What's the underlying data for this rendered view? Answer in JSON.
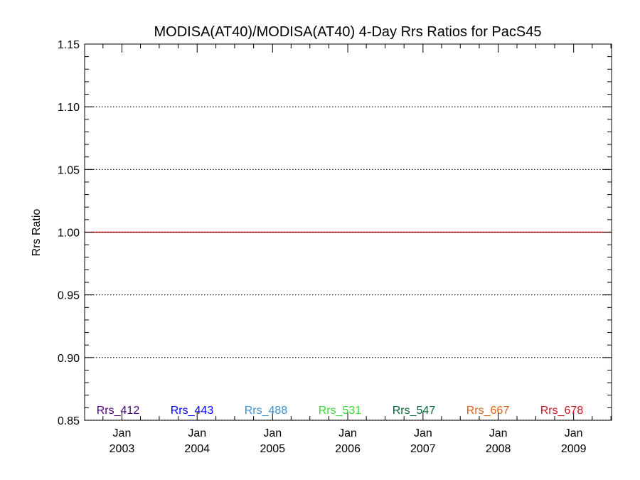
{
  "chart_data": {
    "type": "line",
    "title": "MODISA(AT40)/MODISA(AT40) 4-Day Rrs Ratios for PacS45",
    "xlabel": "",
    "ylabel": "Rrs Ratio",
    "ylim": [
      0.85,
      1.15
    ],
    "yticks": [
      "0.85",
      "0.90",
      "0.95",
      "1.00",
      "1.05",
      "1.10",
      "1.15"
    ],
    "xlim": [
      "2002-07-04",
      "2009-07-04"
    ],
    "xticks": [
      {
        "month": "Jan",
        "year": "2003",
        "date": "2003-01-01"
      },
      {
        "month": "Jan",
        "year": "2004",
        "date": "2004-01-01"
      },
      {
        "month": "Jan",
        "year": "2005",
        "date": "2005-01-01"
      },
      {
        "month": "Jan",
        "year": "2006",
        "date": "2006-01-01"
      },
      {
        "month": "Jan",
        "year": "2007",
        "date": "2007-01-01"
      },
      {
        "month": "Jan",
        "year": "2008",
        "date": "2008-01-01"
      },
      {
        "month": "Jan",
        "year": "2009",
        "date": "2009-01-01"
      }
    ],
    "gridlines_y": [
      0.85,
      0.9,
      0.95,
      1.05,
      1.1
    ],
    "grid_style": "dotted",
    "reference_line": {
      "y": 1.0,
      "color": "#cc0000"
    },
    "series": [
      {
        "name": "Rrs_412",
        "color": "#4b0082",
        "x": [],
        "y": []
      },
      {
        "name": "Rrs_443",
        "color": "#0000ff",
        "x": [],
        "y": []
      },
      {
        "name": "Rrs_488",
        "color": "#3a8fd0",
        "x": [],
        "y": []
      },
      {
        "name": "Rrs_531",
        "color": "#33dd33",
        "x": [],
        "y": []
      },
      {
        "name": "Rrs_547",
        "color": "#006633",
        "x": [],
        "y": []
      },
      {
        "name": "Rrs_667",
        "color": "#e06010",
        "x": [],
        "y": []
      },
      {
        "name": "Rrs_678",
        "color": "#cc1122",
        "x": [],
        "y": []
      }
    ],
    "legend_position": "bottom-inside"
  }
}
